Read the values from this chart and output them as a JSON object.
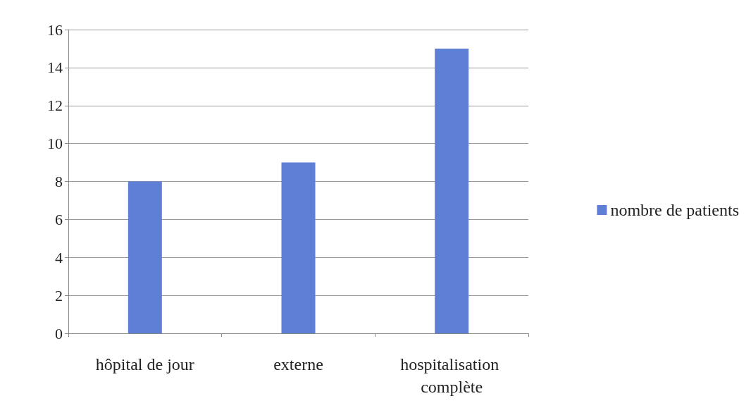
{
  "chart_data": {
    "type": "bar",
    "categories": [
      "hôpital de jour",
      "externe",
      "hospitalisation complète"
    ],
    "series": [
      {
        "name": "nombre de patients",
        "color": "#5f7fd6",
        "values": [
          8,
          9,
          15
        ]
      }
    ],
    "ylim": [
      0,
      16
    ],
    "yticks": [
      0,
      2,
      4,
      6,
      8,
      10,
      12,
      14,
      16
    ],
    "grid": "y",
    "legend": "right"
  }
}
